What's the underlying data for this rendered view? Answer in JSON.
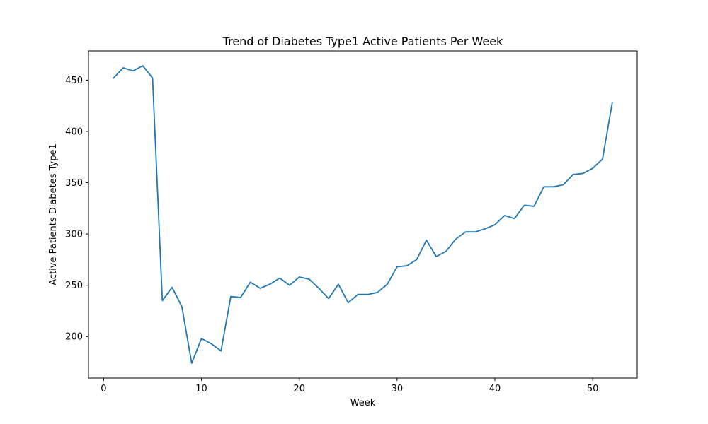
{
  "chart_data": {
    "type": "line",
    "title": "Trend of Diabetes Type1 Active Patients Per Week",
    "xlabel": "Week",
    "ylabel": "Active Patients Diabetes Type1",
    "xlim": [
      -1.55,
      54.55
    ],
    "ylim": [
      159.5,
      478.5
    ],
    "xticks": [
      0,
      10,
      20,
      30,
      40,
      50
    ],
    "yticks": [
      200,
      250,
      300,
      350,
      400,
      450
    ],
    "grid": false,
    "line_color": "#1f77b4",
    "series": [
      {
        "x": [
          1,
          2,
          3,
          4,
          5,
          6,
          7,
          8,
          9,
          10,
          11,
          12,
          13,
          14,
          15,
          16,
          17,
          18,
          19,
          20,
          21,
          22,
          23,
          24,
          25,
          26,
          27,
          28,
          29,
          30,
          31,
          32,
          33,
          34,
          35,
          36,
          37,
          38,
          39,
          40,
          41,
          42,
          43,
          44,
          45,
          46,
          47,
          48,
          49,
          50,
          51,
          52
        ],
        "values": [
          452,
          462,
          459,
          464,
          452,
          235,
          248,
          229,
          174,
          198,
          193,
          186,
          239,
          238,
          253,
          247,
          251,
          257,
          250,
          258,
          256,
          247,
          237,
          251,
          233,
          241,
          241,
          243,
          251,
          268,
          269,
          275,
          294,
          278,
          283,
          295,
          302,
          302,
          305,
          309,
          318,
          315,
          328,
          327,
          346,
          346,
          348,
          358,
          359,
          364,
          373,
          428
        ]
      }
    ]
  }
}
